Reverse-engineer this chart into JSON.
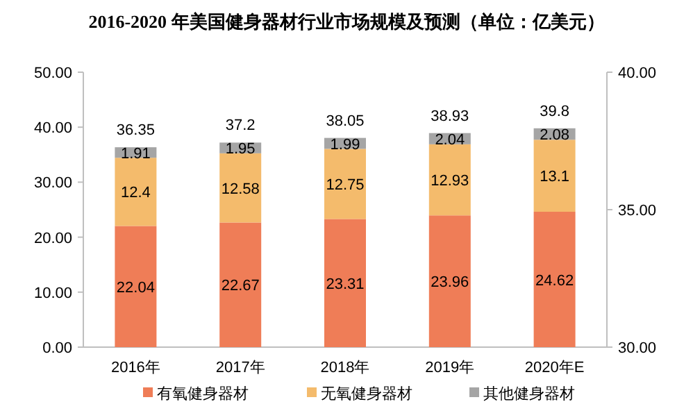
{
  "chart_data": {
    "type": "bar",
    "title": "2016-2020 年美国健身器材行业市场规模及预测（单位：亿美元）",
    "categories": [
      "2016年",
      "2017年",
      "2018年",
      "2019年",
      "2020年E"
    ],
    "stacked": true,
    "data_labels": true,
    "legend": "bottom",
    "grid": false,
    "series": [
      {
        "name": "有氧健身器材",
        "color": "#ef7d57",
        "values": [
          22.04,
          22.67,
          23.31,
          23.96,
          24.62
        ]
      },
      {
        "name": "无氧健身器材",
        "color": "#f4bb6c",
        "values": [
          12.4,
          12.58,
          12.75,
          12.93,
          13.1
        ]
      },
      {
        "name": "其他健身器材",
        "color": "#a5a5a5",
        "values": [
          1.91,
          1.95,
          1.99,
          2.04,
          2.08
        ]
      }
    ],
    "totals": [
      "36.35",
      "37.2",
      "38.05",
      "38.93",
      "39.8"
    ],
    "ylim": [
      0,
      50
    ],
    "yticks": [
      {
        "value": 0,
        "label": "0.00"
      },
      {
        "value": 10,
        "label": "10.00"
      },
      {
        "value": 20,
        "label": "20.00"
      },
      {
        "value": 30,
        "label": "30.00"
      },
      {
        "value": 40,
        "label": "40.00"
      },
      {
        "value": 50,
        "label": "50.00"
      }
    ],
    "y2lim": [
      30,
      40
    ],
    "y2ticks": [
      {
        "value": 30,
        "label": "30.00"
      },
      {
        "value": 35,
        "label": "35.00"
      },
      {
        "value": 40,
        "label": "40.00"
      }
    ]
  }
}
